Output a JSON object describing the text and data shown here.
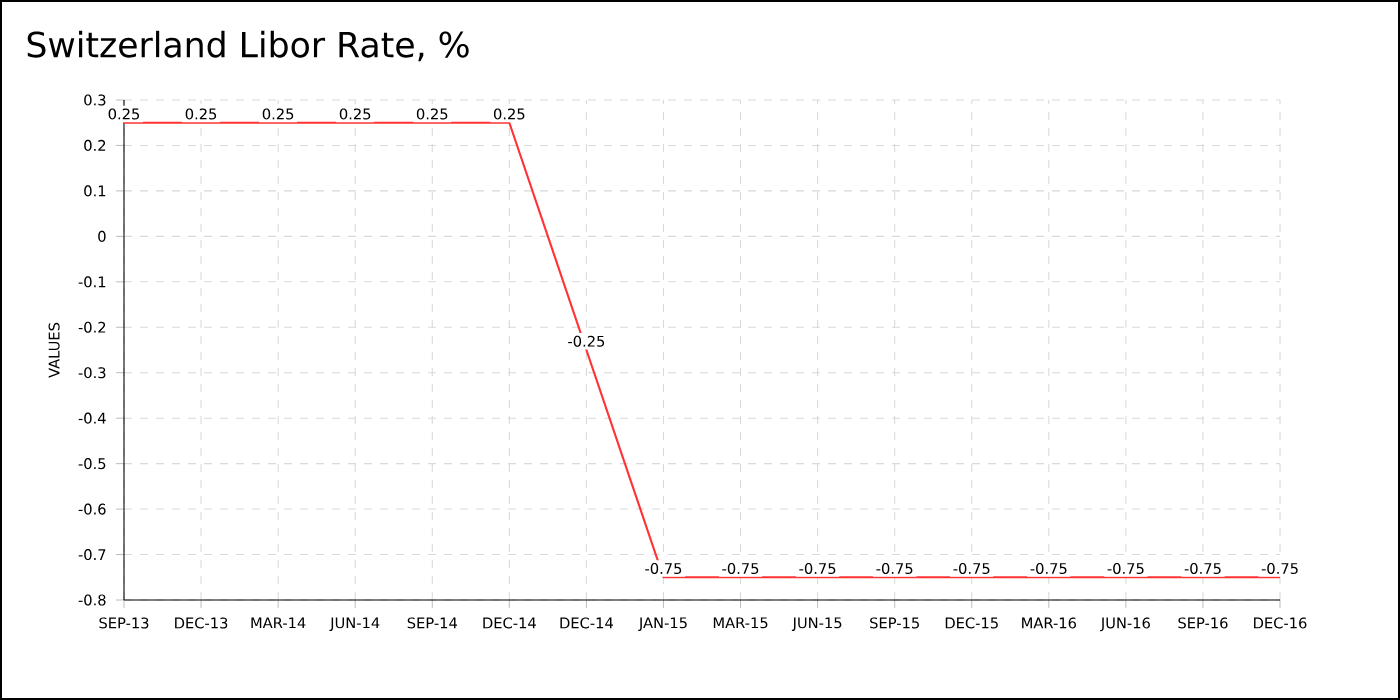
{
  "chart_data": {
    "type": "line",
    "title": "Switzerland Libor Rate, %",
    "ylabel": "VALUES",
    "categories": [
      "SEP-13",
      "DEC-13",
      "MAR-14",
      "JUN-14",
      "SEP-14",
      "DEC-14",
      "DEC-14",
      "JAN-15",
      "MAR-15",
      "JUN-15",
      "SEP-15",
      "DEC-15",
      "MAR-16",
      "JUN-16",
      "SEP-16",
      "DEC-16"
    ],
    "values": [
      0.25,
      0.25,
      0.25,
      0.25,
      0.25,
      0.25,
      -0.25,
      -0.75,
      -0.75,
      -0.75,
      -0.75,
      -0.75,
      -0.75,
      -0.75,
      -0.75,
      -0.75
    ],
    "color": "#ff3333",
    "ylim": [
      -0.8,
      0.3
    ],
    "yticks": [
      -0.8,
      -0.7,
      -0.6,
      -0.5,
      -0.4,
      -0.3,
      -0.2,
      -0.1,
      0,
      0.1,
      0.2,
      0.3
    ],
    "grid": true,
    "data_labels": true,
    "marker": "none",
    "line_style": "solid"
  }
}
